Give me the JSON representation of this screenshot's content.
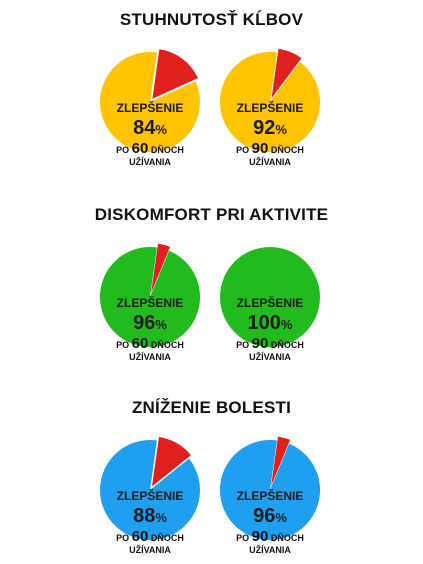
{
  "chart_data": [
    {
      "type": "pie",
      "title": "STUHNUTOSŤ KĹBOV",
      "color": "#FFC400",
      "remainder_color": "#E0201E",
      "charts": [
        {
          "label": "ZLEPŠENIE",
          "value": 84,
          "unit": "%",
          "caption_pre": "PO",
          "caption_num": "60",
          "caption_post": "DŇOCH",
          "caption_line2": "UŽÍVANIA"
        },
        {
          "label": "ZLEPŠENIE",
          "value": 92,
          "unit": "%",
          "caption_pre": "PO",
          "caption_num": "90",
          "caption_post": "DŇOCH",
          "caption_line2": "UŽÍVANIA"
        }
      ]
    },
    {
      "type": "pie",
      "title": "DISKOMFORT PRI AKTIVITE",
      "color": "#22BB1E",
      "remainder_color": "#E0201E",
      "charts": [
        {
          "label": "ZLEPŠENIE",
          "value": 96,
          "unit": "%",
          "caption_pre": "PO",
          "caption_num": "60",
          "caption_post": "DŇOCH",
          "caption_line2": "UŽÍVANIA"
        },
        {
          "label": "ZLEPŠENIE",
          "value": 100,
          "unit": "%",
          "caption_pre": "PO",
          "caption_num": "90",
          "caption_post": "DŇOCH",
          "caption_line2": "UŽÍVANIA"
        }
      ]
    },
    {
      "type": "pie",
      "title": "ZNÍŽENIE BOLESTI",
      "color": "#1E9FF0",
      "remainder_color": "#E0201E",
      "charts": [
        {
          "label": "ZLEPŠENIE",
          "value": 88,
          "unit": "%",
          "caption_pre": "PO",
          "caption_num": "60",
          "caption_post": "DŇOCH",
          "caption_line2": "UŽÍVANIA"
        },
        {
          "label": "ZLEPŠENIE",
          "value": 96,
          "unit": "%",
          "caption_pre": "PO",
          "caption_num": "90",
          "caption_post": "DŇOCH",
          "caption_line2": "UŽÍVANIA"
        }
      ]
    }
  ]
}
